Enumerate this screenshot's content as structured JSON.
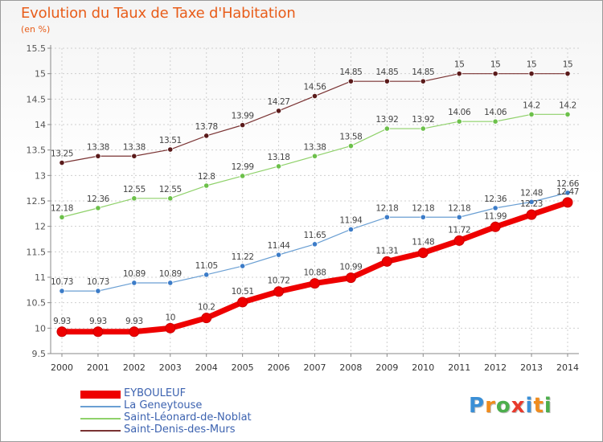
{
  "title": "Evolution du Taux de Taxe d'Habitation",
  "unit_label": "(en %)",
  "logo": {
    "text": "Proxiti",
    "letters": [
      "P",
      "r",
      "o",
      "x",
      "i",
      "t",
      "i"
    ],
    "colors": [
      "#3a8fd6",
      "#f08c1d",
      "#4cae4c",
      "#e83a2d",
      "#3a8fd6",
      "#f08c1d",
      "#4cae4c"
    ]
  },
  "chart_data": {
    "type": "line",
    "title": "Evolution du Taux de Taxe d'Habitation",
    "ylabel": "(en %)",
    "x": [
      "2000",
      "2001",
      "2002",
      "2003",
      "2004",
      "2005",
      "2006",
      "2007",
      "2008",
      "2009",
      "2010",
      "2011",
      "2012",
      "2013",
      "2014"
    ],
    "ylim": [
      9.5,
      15.5
    ],
    "yticks": [
      9.5,
      10,
      10.5,
      11,
      11.5,
      12,
      12.5,
      13,
      13.5,
      14,
      14.5,
      15,
      15.5
    ],
    "ytick_labels": [
      "9.5",
      "10",
      "10.5",
      "11",
      "11.5",
      "12",
      "12.5",
      "13",
      "13.5",
      "14",
      "14.5",
      "15",
      "15.5"
    ],
    "grid": true,
    "legend_position": "bottom-left",
    "series": [
      {
        "name": "EYBOULEUF",
        "values": [
          9.93,
          9.93,
          9.93,
          10,
          10.2,
          10.51,
          10.72,
          10.88,
          10.99,
          11.31,
          11.48,
          11.72,
          11.99,
          12.23,
          12.47
        ],
        "labels": [
          "9.93",
          "9.93",
          "9.93",
          "10",
          "10.2",
          "10.51",
          "10.72",
          "10.88",
          "10.99",
          "11.31",
          "11.48",
          "11.72",
          "11.99",
          "12.23",
          "12.47"
        ],
        "color": "#ee0000",
        "dot_color": "#ee0000"
      },
      {
        "name": "La Geneytouse",
        "values": [
          10.73,
          10.73,
          10.89,
          10.89,
          11.05,
          11.22,
          11.44,
          11.65,
          11.94,
          12.18,
          12.18,
          12.18,
          12.36,
          12.48,
          12.66
        ],
        "labels": [
          "10.73",
          "10.73",
          "10.89",
          "10.89",
          "11.05",
          "11.22",
          "11.44",
          "11.65",
          "11.94",
          "12.18",
          "12.18",
          "12.18",
          "12.36",
          "12.48",
          "12.66"
        ],
        "color": "#6a9fd3",
        "dot_color": "#3c7cc8"
      },
      {
        "name": "Saint-Léonard-de-Noblat",
        "values": [
          12.18,
          12.36,
          12.55,
          12.55,
          12.8,
          12.99,
          13.18,
          13.38,
          13.58,
          13.92,
          13.92,
          14.06,
          14.06,
          14.2,
          14.2
        ],
        "labels": [
          "12.18",
          "12.36",
          "12.55",
          "12.55",
          "12.8",
          "12.99",
          "13.18",
          "13.38",
          "13.58",
          "13.92",
          "13.92",
          "14.06",
          "14.06",
          "14.2",
          "14.2"
        ],
        "color": "#8fd16a",
        "dot_color": "#6cc04a"
      },
      {
        "name": "Saint-Denis-des-Murs",
        "values": [
          13.25,
          13.38,
          13.38,
          13.51,
          13.78,
          13.99,
          14.27,
          14.56,
          14.85,
          14.85,
          14.85,
          15,
          15,
          15,
          15
        ],
        "labels": [
          "13.25",
          "13.38",
          "13.38",
          "13.51",
          "13.78",
          "13.99",
          "14.27",
          "14.56",
          "14.85",
          "14.85",
          "14.85",
          "15",
          "15",
          "15",
          "15"
        ],
        "color": "#7a3333",
        "dot_color": "#5a1a1a"
      }
    ]
  }
}
